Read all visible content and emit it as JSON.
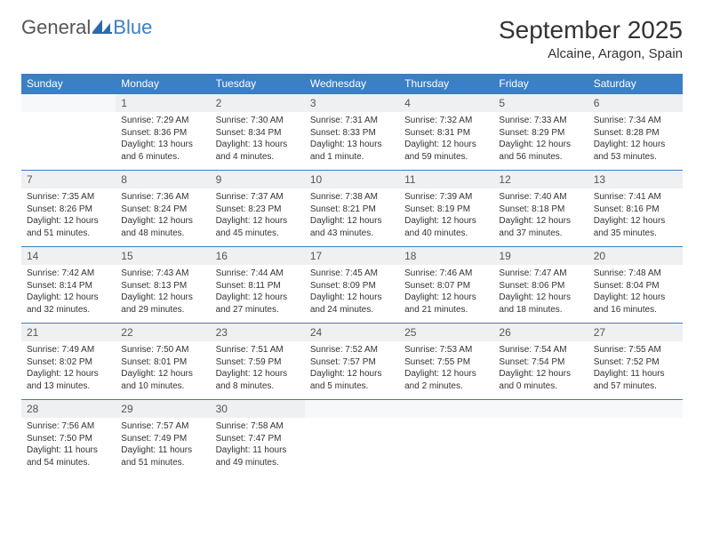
{
  "logo": {
    "text1": "General",
    "text2": "Blue"
  },
  "title": "September 2025",
  "location": "Alcaine, Aragon, Spain",
  "colors": {
    "header_bg": "#3b7fc4",
    "header_text": "#ffffff",
    "daynum_bg": "#eef0f1",
    "border": "#3b7fc4",
    "text": "#333333"
  },
  "day_headers": [
    "Sunday",
    "Monday",
    "Tuesday",
    "Wednesday",
    "Thursday",
    "Friday",
    "Saturday"
  ],
  "weeks": [
    [
      null,
      {
        "n": "1",
        "sr": "7:29 AM",
        "ss": "8:36 PM",
        "dl": "13 hours and 6 minutes."
      },
      {
        "n": "2",
        "sr": "7:30 AM",
        "ss": "8:34 PM",
        "dl": "13 hours and 4 minutes."
      },
      {
        "n": "3",
        "sr": "7:31 AM",
        "ss": "8:33 PM",
        "dl": "13 hours and 1 minute."
      },
      {
        "n": "4",
        "sr": "7:32 AM",
        "ss": "8:31 PM",
        "dl": "12 hours and 59 minutes."
      },
      {
        "n": "5",
        "sr": "7:33 AM",
        "ss": "8:29 PM",
        "dl": "12 hours and 56 minutes."
      },
      {
        "n": "6",
        "sr": "7:34 AM",
        "ss": "8:28 PM",
        "dl": "12 hours and 53 minutes."
      }
    ],
    [
      {
        "n": "7",
        "sr": "7:35 AM",
        "ss": "8:26 PM",
        "dl": "12 hours and 51 minutes."
      },
      {
        "n": "8",
        "sr": "7:36 AM",
        "ss": "8:24 PM",
        "dl": "12 hours and 48 minutes."
      },
      {
        "n": "9",
        "sr": "7:37 AM",
        "ss": "8:23 PM",
        "dl": "12 hours and 45 minutes."
      },
      {
        "n": "10",
        "sr": "7:38 AM",
        "ss": "8:21 PM",
        "dl": "12 hours and 43 minutes."
      },
      {
        "n": "11",
        "sr": "7:39 AM",
        "ss": "8:19 PM",
        "dl": "12 hours and 40 minutes."
      },
      {
        "n": "12",
        "sr": "7:40 AM",
        "ss": "8:18 PM",
        "dl": "12 hours and 37 minutes."
      },
      {
        "n": "13",
        "sr": "7:41 AM",
        "ss": "8:16 PM",
        "dl": "12 hours and 35 minutes."
      }
    ],
    [
      {
        "n": "14",
        "sr": "7:42 AM",
        "ss": "8:14 PM",
        "dl": "12 hours and 32 minutes."
      },
      {
        "n": "15",
        "sr": "7:43 AM",
        "ss": "8:13 PM",
        "dl": "12 hours and 29 minutes."
      },
      {
        "n": "16",
        "sr": "7:44 AM",
        "ss": "8:11 PM",
        "dl": "12 hours and 27 minutes."
      },
      {
        "n": "17",
        "sr": "7:45 AM",
        "ss": "8:09 PM",
        "dl": "12 hours and 24 minutes."
      },
      {
        "n": "18",
        "sr": "7:46 AM",
        "ss": "8:07 PM",
        "dl": "12 hours and 21 minutes."
      },
      {
        "n": "19",
        "sr": "7:47 AM",
        "ss": "8:06 PM",
        "dl": "12 hours and 18 minutes."
      },
      {
        "n": "20",
        "sr": "7:48 AM",
        "ss": "8:04 PM",
        "dl": "12 hours and 16 minutes."
      }
    ],
    [
      {
        "n": "21",
        "sr": "7:49 AM",
        "ss": "8:02 PM",
        "dl": "12 hours and 13 minutes."
      },
      {
        "n": "22",
        "sr": "7:50 AM",
        "ss": "8:01 PM",
        "dl": "12 hours and 10 minutes."
      },
      {
        "n": "23",
        "sr": "7:51 AM",
        "ss": "7:59 PM",
        "dl": "12 hours and 8 minutes."
      },
      {
        "n": "24",
        "sr": "7:52 AM",
        "ss": "7:57 PM",
        "dl": "12 hours and 5 minutes."
      },
      {
        "n": "25",
        "sr": "7:53 AM",
        "ss": "7:55 PM",
        "dl": "12 hours and 2 minutes."
      },
      {
        "n": "26",
        "sr": "7:54 AM",
        "ss": "7:54 PM",
        "dl": "12 hours and 0 minutes."
      },
      {
        "n": "27",
        "sr": "7:55 AM",
        "ss": "7:52 PM",
        "dl": "11 hours and 57 minutes."
      }
    ],
    [
      {
        "n": "28",
        "sr": "7:56 AM",
        "ss": "7:50 PM",
        "dl": "11 hours and 54 minutes."
      },
      {
        "n": "29",
        "sr": "7:57 AM",
        "ss": "7:49 PM",
        "dl": "11 hours and 51 minutes."
      },
      {
        "n": "30",
        "sr": "7:58 AM",
        "ss": "7:47 PM",
        "dl": "11 hours and 49 minutes."
      },
      null,
      null,
      null,
      null
    ]
  ],
  "labels": {
    "sunrise": "Sunrise:",
    "sunset": "Sunset:",
    "daylight": "Daylight:"
  }
}
